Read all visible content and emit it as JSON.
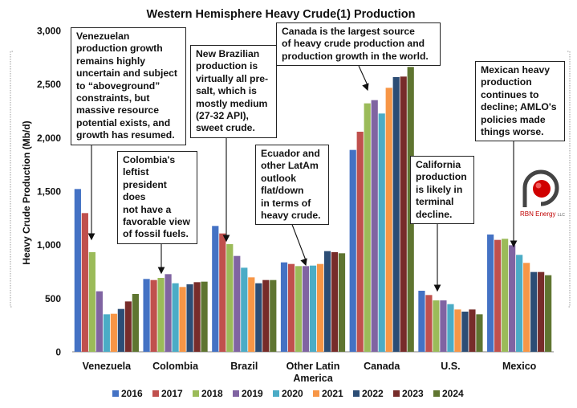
{
  "chart_data": {
    "type": "bar",
    "title": "Western Hemisphere Heavy Crude(1) Production",
    "xlabel": "",
    "ylabel": "Heavy Crude Production (Mb/d)",
    "ylim": [
      0,
      3000
    ],
    "yticks": [
      0,
      500,
      1000,
      1500,
      2000,
      2500,
      3000
    ],
    "ytick_labels": [
      "0",
      "500",
      "1,000",
      "1,500",
      "2,000",
      "2,500",
      "3,000"
    ],
    "grid": false,
    "legend_position": "bottom",
    "categories": [
      "Venezuela",
      "Colombia",
      "Brazil",
      "Other Latin America",
      "Canada",
      "U.S.",
      "Mexico"
    ],
    "category_labels": [
      [
        "Venezuela"
      ],
      [
        "Colombia"
      ],
      [
        "Brazil"
      ],
      [
        "Other Latin",
        "America"
      ],
      [
        "Canada"
      ],
      [
        "U.S."
      ],
      [
        "Mexico"
      ]
    ],
    "series": [
      {
        "name": "2016",
        "color": "#4472c4",
        "values": [
          1520,
          680,
          1175,
          835,
          1885,
          570,
          1095
        ]
      },
      {
        "name": "2017",
        "color": "#c0504d",
        "values": [
          1295,
          670,
          1105,
          820,
          2055,
          530,
          1045
        ]
      },
      {
        "name": "2018",
        "color": "#9bbb59",
        "values": [
          930,
          690,
          1005,
          800,
          2320,
          480,
          1055
        ]
      },
      {
        "name": "2019",
        "color": "#8064a2",
        "values": [
          565,
          725,
          895,
          800,
          2350,
          480,
          995
        ]
      },
      {
        "name": "2020",
        "color": "#4bacc6",
        "values": [
          350,
          640,
          785,
          805,
          2225,
          445,
          905
        ]
      },
      {
        "name": "2021",
        "color": "#f79646",
        "values": [
          355,
          605,
          695,
          820,
          2465,
          395,
          830
        ]
      },
      {
        "name": "2022",
        "color": "#2c4d75",
        "values": [
          400,
          630,
          640,
          940,
          2565,
          375,
          745
        ]
      },
      {
        "name": "2023",
        "color": "#772c2a",
        "values": [
          470,
          650,
          670,
          930,
          2570,
          395,
          745
        ]
      },
      {
        "name": "2024",
        "color": "#5f7530",
        "values": [
          540,
          655,
          670,
          920,
          2660,
          350,
          715
        ]
      }
    ]
  },
  "annotations": [
    {
      "id": "venezuela",
      "text": "Venezuelan\nproduction growth\nremains highly\nuncertain and subject\nto “aboveground”\nconstraints, but\nmassive resource\npotential exists, and\ngrowth has resumed."
    },
    {
      "id": "colombia",
      "text": "Colombia's\nleftist\npresident does\nnot have a\nfavorable view\nof fossil fuels."
    },
    {
      "id": "brazil",
      "text": "New Brazilian\nproduction is\nvirtually all pre-\nsalt, which is\nmostly medium\n(27-32 API),\nsweet crude."
    },
    {
      "id": "other-latam",
      "text": "Ecuador and\nother LatAm\noutlook\nflat/down\nin terms of\nheavy crude."
    },
    {
      "id": "canada",
      "text": "Canada is the largest source\nof heavy crude production and\nproduction growth in the world."
    },
    {
      "id": "us",
      "text": "California\nproduction\nis likely in\nterminal\ndecline."
    },
    {
      "id": "mexico",
      "text": "Mexican heavy\nproduction\ncontinues to\ndecline; AMLO's\npolicies made\nthings worse."
    }
  ],
  "logo": {
    "brand": "RBN Energy",
    "suffix": "LLC",
    "colors": {
      "ring": "#444444",
      "dot": "#d00000"
    }
  },
  "colors": {
    "text": "#111111",
    "axis": "#7f7f7f"
  }
}
